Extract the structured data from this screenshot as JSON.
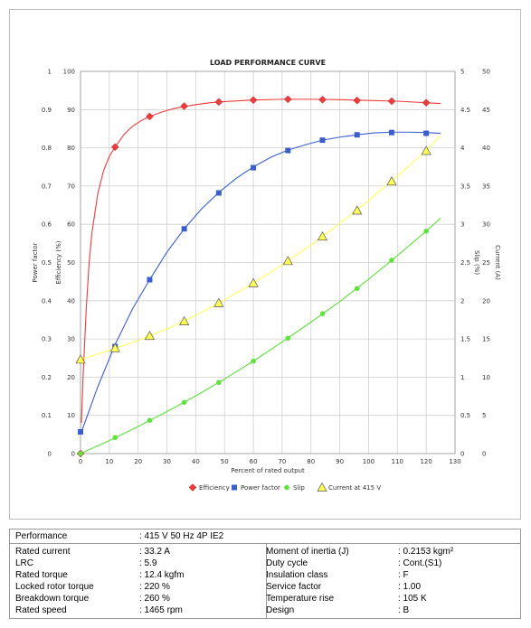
{
  "chart_data": {
    "type": "line",
    "title": "LOAD PERFORMANCE CURVE",
    "xlabel": "Percent of rated output",
    "xlim": [
      0,
      130
    ],
    "x_ticks": [
      "0",
      "10",
      "20",
      "30",
      "40",
      "50",
      "60",
      "70",
      "80",
      "90",
      "100",
      "110",
      "120",
      "130"
    ],
    "grid": true,
    "axes": [
      {
        "id": "pf",
        "label": "Power factor",
        "side": "left-outer",
        "range": [
          0,
          1
        ],
        "ticks": [
          "0",
          "0.1",
          "0.2",
          "0.3",
          "0.4",
          "0.5",
          "0.6",
          "0.7",
          "0.8",
          "0.9",
          "1"
        ]
      },
      {
        "id": "eff",
        "label": "Efficiency (%)",
        "side": "left-inner",
        "range": [
          0,
          100
        ],
        "ticks": [
          "0",
          "10",
          "20",
          "30",
          "40",
          "50",
          "60",
          "70",
          "80",
          "90",
          "100"
        ]
      },
      {
        "id": "slip",
        "label": "Slip (%)",
        "side": "right-inner",
        "range": [
          0,
          5
        ],
        "ticks": [
          "0",
          "0.5",
          "1",
          "1.5",
          "2",
          "2.5",
          "3",
          "3.5",
          "4",
          "4.5",
          "5"
        ]
      },
      {
        "id": "cur",
        "label": "Current (A)",
        "side": "right-outer",
        "range": [
          0,
          50
        ],
        "ticks": [
          "0",
          "5",
          "10",
          "15",
          "20",
          "25",
          "30",
          "35",
          "40",
          "45",
          "50"
        ]
      }
    ],
    "legend_position": "bottom",
    "series": [
      {
        "name": "Efficiency",
        "axis": "eff",
        "color": "#ee3b3b",
        "marker": "diamond",
        "x": [
          0,
          12,
          24,
          36,
          48,
          60,
          72,
          84,
          96,
          108,
          120
        ],
        "y": [
          0,
          80.2,
          88.2,
          90.9,
          92.0,
          92.5,
          92.7,
          92.6,
          92.4,
          92.2,
          91.8
        ],
        "curve_x": [
          0.3,
          1,
          2,
          3,
          4,
          6,
          8,
          10,
          12,
          15,
          18,
          21,
          24,
          28,
          32,
          36,
          40,
          45,
          50,
          55,
          60,
          70,
          80,
          90,
          100,
          110,
          120,
          125
        ],
        "curve_y": [
          8,
          22,
          38,
          50,
          58,
          68,
          74,
          77.8,
          80.2,
          83.4,
          85.6,
          87.1,
          88.2,
          89.3,
          90.2,
          90.8,
          91.3,
          91.8,
          92.1,
          92.3,
          92.5,
          92.7,
          92.7,
          92.6,
          92.4,
          92.2,
          91.8,
          91.6
        ]
      },
      {
        "name": "Power factor",
        "axis": "pf",
        "color": "#3a5fcd",
        "marker": "square",
        "x": [
          0,
          12,
          24,
          36,
          48,
          60,
          72,
          84,
          96,
          108,
          120
        ],
        "y": [
          0.057,
          0.28,
          0.455,
          0.588,
          0.682,
          0.748,
          0.793,
          0.82,
          0.834,
          0.84,
          0.838
        ],
        "curve_x": [
          0,
          6,
          12,
          18,
          24,
          30,
          36,
          42,
          48,
          54,
          60,
          66,
          72,
          78,
          84,
          90,
          96,
          102,
          108,
          114,
          120,
          125
        ],
        "curve_y": [
          0.05,
          0.175,
          0.285,
          0.378,
          0.455,
          0.527,
          0.588,
          0.64,
          0.683,
          0.72,
          0.75,
          0.775,
          0.794,
          0.808,
          0.82,
          0.828,
          0.834,
          0.839,
          0.841,
          0.841,
          0.84,
          0.838
        ]
      },
      {
        "name": "Slip",
        "axis": "slip",
        "color": "#5ee23c",
        "marker": "circle",
        "x": [
          0,
          12,
          24,
          36,
          48,
          60,
          72,
          84,
          96,
          108,
          120
        ],
        "y": [
          0,
          0.21,
          0.435,
          0.67,
          0.93,
          1.21,
          1.51,
          1.83,
          2.16,
          2.53,
          2.91
        ],
        "curve_x": [
          0,
          10,
          20,
          30,
          40,
          50,
          60,
          70,
          80,
          90,
          100,
          110,
          120,
          125
        ],
        "curve_y": [
          0,
          0.17,
          0.355,
          0.55,
          0.755,
          0.975,
          1.21,
          1.46,
          1.72,
          1.99,
          2.28,
          2.59,
          2.91,
          3.08
        ]
      },
      {
        "name": "Current at 415 V",
        "axis": "cur",
        "color": "#ffff55",
        "marker": "triangle",
        "x": [
          0,
          12,
          24,
          36,
          48,
          60,
          72,
          84,
          96,
          108,
          120
        ],
        "y": [
          12.3,
          13.8,
          15.4,
          17.3,
          19.7,
          22.3,
          25.2,
          28.4,
          31.8,
          35.6,
          39.6
        ],
        "curve_x": [
          0,
          10,
          20,
          30,
          40,
          50,
          60,
          70,
          80,
          90,
          100,
          110,
          120,
          125
        ],
        "curve_y": [
          12.3,
          13.5,
          14.8,
          16.3,
          18.1,
          20.1,
          22.3,
          24.7,
          27.3,
          30.1,
          33.1,
          36.3,
          39.6,
          41.6
        ]
      }
    ]
  },
  "table": {
    "performance_label": "Performance",
    "performance_value": ": 415 V 50 Hz 4P IE2",
    "left": [
      {
        "label": "Rated current",
        "value": ": 33.2 A"
      },
      {
        "label": "LRC",
        "value": ": 5.9"
      },
      {
        "label": "Rated torque",
        "value": ": 12.4 kgfm"
      },
      {
        "label": "Locked rotor torque",
        "value": ": 220 %"
      },
      {
        "label": "Breakdown torque",
        "value": ": 260 %"
      },
      {
        "label": "Rated speed",
        "value": ": 1465 rpm"
      }
    ],
    "right": [
      {
        "label": "Moment of inertia (J)",
        "value": ": 0.2153 kgm²"
      },
      {
        "label": "Duty cycle",
        "value": ": Cont.(S1)"
      },
      {
        "label": "Insulation class",
        "value": ": F"
      },
      {
        "label": "Service factor",
        "value": ": 1.00"
      },
      {
        "label": "Temperature rise",
        "value": ": 105 K"
      },
      {
        "label": "Design",
        "value": ": B"
      }
    ]
  }
}
